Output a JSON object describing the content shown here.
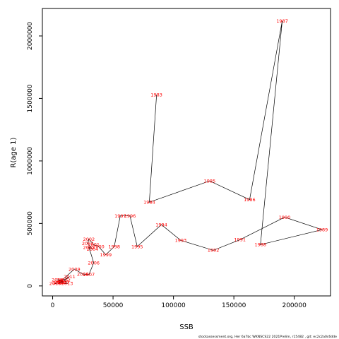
{
  "chart_data": {
    "type": "line",
    "xlabel": "SSB",
    "ylabel": "R(age 1)",
    "xlim": [
      -8500,
      230000
    ],
    "ylim": [
      -80000,
      2220000
    ],
    "xticks": [
      0,
      50000,
      100000,
      150000,
      200000
    ],
    "yticks": [
      0,
      500000,
      1000000,
      1500000,
      2000000
    ],
    "xtick_labels": [
      "0",
      "50000",
      "100000",
      "150000",
      "200000"
    ],
    "ytick_labels": [
      "0",
      "500000",
      "1000000",
      "1500000",
      "2000000"
    ],
    "grid": false,
    "label_color": "#ff0000",
    "line_color": "#000000",
    "points": [
      {
        "year": "1983",
        "x": 86000,
        "y": 1530000
      },
      {
        "year": "1984",
        "x": 80000,
        "y": 670000
      },
      {
        "year": "1985",
        "x": 130000,
        "y": 840000
      },
      {
        "year": "1986",
        "x": 163000,
        "y": 690000
      },
      {
        "year": "1987",
        "x": 190000,
        "y": 2120000
      },
      {
        "year": "1988",
        "x": 172000,
        "y": 330000
      },
      {
        "year": "1989",
        "x": 223000,
        "y": 450000
      },
      {
        "year": "1990",
        "x": 192000,
        "y": 550000
      },
      {
        "year": "1991",
        "x": 155000,
        "y": 370000
      },
      {
        "year": "1992",
        "x": 133000,
        "y": 285000
      },
      {
        "year": "1993",
        "x": 106000,
        "y": 365000
      },
      {
        "year": "1994",
        "x": 90000,
        "y": 490000
      },
      {
        "year": "1995",
        "x": 70000,
        "y": 315000
      },
      {
        "year": "1996",
        "x": 64000,
        "y": 560000
      },
      {
        "year": "1997",
        "x": 56000,
        "y": 560000
      },
      {
        "year": "1998",
        "x": 51000,
        "y": 315000
      },
      {
        "year": "1999",
        "x": 44000,
        "y": 250000
      },
      {
        "year": "2000",
        "x": 38000,
        "y": 315000
      },
      {
        "year": "2001",
        "x": 34000,
        "y": 330000
      },
      {
        "year": "2002",
        "x": 30000,
        "y": 375000
      },
      {
        "year": "2003",
        "x": 29000,
        "y": 340000
      },
      {
        "year": "2004",
        "x": 33000,
        "y": 295000
      },
      {
        "year": "2005",
        "x": 30000,
        "y": 310000
      },
      {
        "year": "2006",
        "x": 34000,
        "y": 185000
      },
      {
        "year": "2007",
        "x": 30000,
        "y": 90000
      },
      {
        "year": "2008",
        "x": 25000,
        "y": 95000
      },
      {
        "year": "2009",
        "x": 18000,
        "y": 135000
      },
      {
        "year": "2010",
        "x": 6000,
        "y": 30000
      },
      {
        "year": "2011",
        "x": 14000,
        "y": 75000
      },
      {
        "year": "2012",
        "x": 10000,
        "y": 45000
      },
      {
        "year": "2013",
        "x": 12000,
        "y": 20000
      },
      {
        "year": "2014",
        "x": 5000,
        "y": 25000
      },
      {
        "year": "2015",
        "x": 8000,
        "y": 45000
      },
      {
        "year": "2016",
        "x": 4000,
        "y": 50000
      },
      {
        "year": "2017",
        "x": 9000,
        "y": 30000
      },
      {
        "year": "2018",
        "x": 2000,
        "y": 20000
      }
    ]
  },
  "footer": "stockassessment.org, Her 6a7bc WKNSCS22 2021Prelim, r15482 , git: ec2c2a0c6dde"
}
